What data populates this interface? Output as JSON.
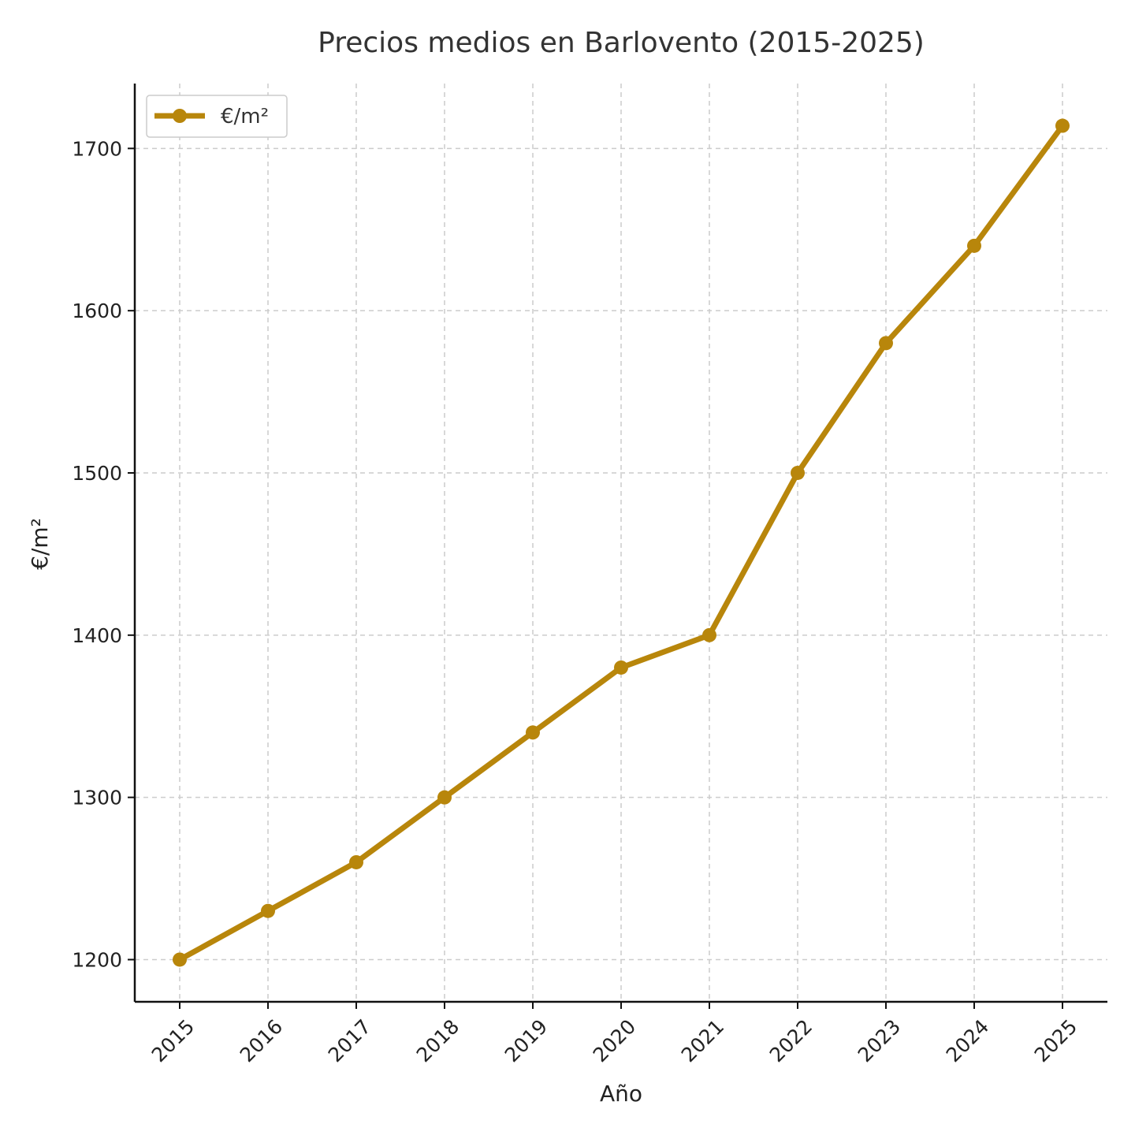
{
  "chart_data": {
    "type": "line",
    "title": "Precios medios en Barlovento (2015-2025)",
    "xlabel": "Año",
    "ylabel": "€/m²",
    "categories": [
      "2015",
      "2016",
      "2017",
      "2018",
      "2019",
      "2020",
      "2021",
      "2022",
      "2023",
      "2024",
      "2025"
    ],
    "series": [
      {
        "name": "€/m²",
        "values": [
          1200,
          1230,
          1260,
          1300,
          1340,
          1380,
          1400,
          1500,
          1580,
          1640,
          1714
        ],
        "color": "#B8860B"
      }
    ],
    "yticks": [
      1200,
      1300,
      1400,
      1500,
      1600,
      1700
    ],
    "ylim": [
      1174,
      1740
    ],
    "grid": true,
    "legend_position": "top-left"
  }
}
